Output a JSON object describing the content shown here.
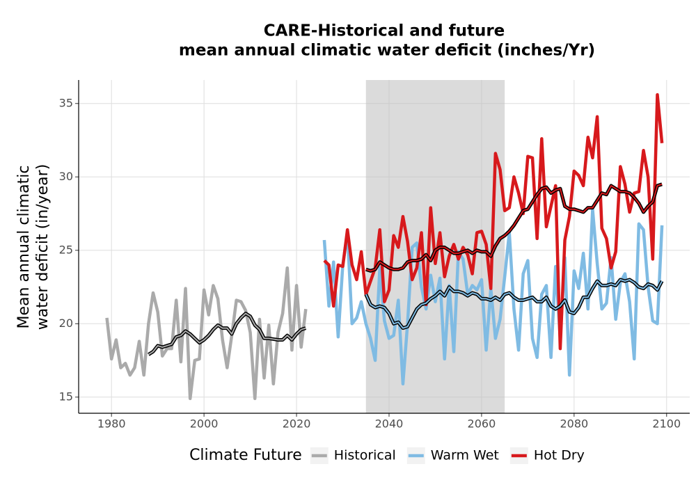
{
  "chart_data": {
    "type": "line",
    "title": [
      "CARE-Historical and future",
      "mean annual climatic water deficit (inches/Yr)"
    ],
    "ylabel": [
      "Mean annual climatic",
      "water deficit (in/year)"
    ],
    "legend_title": "Climate Future",
    "legend_position": "bottom",
    "grid": true,
    "xlim": [
      1972.9,
      2105
    ],
    "ylim": [
      13.9,
      36.6
    ],
    "xticks": [
      1980,
      2000,
      2020,
      2040,
      2060,
      2080,
      2100
    ],
    "yticks": [
      15,
      20,
      25,
      30,
      35
    ],
    "shaded_region": [
      2035,
      2065
    ],
    "series": [
      {
        "name": "Historical",
        "color": "#aaaaaa",
        "x": [
          1979,
          1980,
          1981,
          1982,
          1983,
          1984,
          1985,
          1986,
          1987,
          1988,
          1989,
          1990,
          1991,
          1992,
          1993,
          1994,
          1995,
          1996,
          1997,
          1998,
          1999,
          2000,
          2001,
          2002,
          2003,
          2004,
          2005,
          2006,
          2007,
          2008,
          2009,
          2010,
          2011,
          2012,
          2013,
          2014,
          2015,
          2016,
          2017,
          2018,
          2019,
          2020,
          2021,
          2022
        ],
        "values": [
          20.4,
          17.6,
          18.9,
          17.0,
          17.3,
          16.5,
          17.0,
          18.8,
          16.5,
          20.0,
          22.1,
          20.8,
          17.8,
          18.3,
          18.3,
          21.6,
          17.4,
          22.4,
          14.9,
          17.5,
          17.6,
          22.3,
          20.6,
          22.6,
          21.7,
          18.9,
          17.0,
          19.2,
          21.6,
          21.5,
          20.9,
          19.4,
          14.9,
          20.3,
          16.3,
          19.9,
          15.9,
          19.4,
          20.7,
          23.8,
          18.2,
          22.6,
          18.4,
          21.0
        ],
        "smooth": {
          "x": [
            1988,
            1989,
            1990,
            1991,
            1992,
            1993,
            1994,
            1995,
            1996,
            1997,
            1998,
            1999,
            2000,
            2001,
            2002,
            2003,
            2004,
            2005,
            2006,
            2007,
            2008,
            2009,
            2010,
            2011,
            2012,
            2013,
            2014,
            2015,
            2016,
            2017,
            2018,
            2019,
            2020,
            2021,
            2022
          ],
          "values": [
            17.9,
            18.1,
            18.5,
            18.4,
            18.5,
            18.6,
            19.1,
            19.2,
            19.5,
            19.3,
            19.0,
            18.7,
            18.9,
            19.2,
            19.6,
            19.9,
            19.7,
            19.7,
            19.3,
            20.0,
            20.4,
            20.7,
            20.5,
            19.9,
            19.6,
            19.0,
            19.0,
            18.95,
            18.9,
            18.9,
            19.2,
            18.9,
            19.3,
            19.6,
            19.7
          ]
        }
      },
      {
        "name": "Warm Wet",
        "color": "#7fbbe3",
        "x": [
          2026,
          2027,
          2028,
          2029,
          2030,
          2031,
          2032,
          2033,
          2034,
          2035,
          2036,
          2037,
          2038,
          2039,
          2040,
          2041,
          2042,
          2043,
          2044,
          2045,
          2046,
          2047,
          2048,
          2049,
          2050,
          2051,
          2052,
          2053,
          2054,
          2055,
          2056,
          2057,
          2058,
          2059,
          2060,
          2061,
          2062,
          2063,
          2064,
          2065,
          2066,
          2067,
          2068,
          2069,
          2070,
          2071,
          2072,
          2073,
          2074,
          2075,
          2076,
          2077,
          2078,
          2079,
          2080,
          2081,
          2082,
          2083,
          2084,
          2085,
          2086,
          2087,
          2088,
          2089,
          2090,
          2091,
          2092,
          2093,
          2094,
          2095,
          2096,
          2097,
          2098,
          2099
        ],
        "values": [
          25.7,
          21.2,
          24.2,
          19.1,
          24.0,
          26.2,
          20.0,
          20.4,
          21.5,
          20.0,
          19.0,
          17.5,
          23.8,
          20.2,
          19.0,
          19.2,
          21.6,
          15.9,
          20.0,
          25.2,
          25.5,
          22.5,
          21.0,
          23.3,
          21.5,
          23.1,
          17.6,
          22.6,
          18.1,
          24.9,
          24.4,
          22.0,
          22.6,
          22.3,
          23.0,
          18.2,
          22.4,
          19.0,
          20.3,
          23.2,
          26.2,
          21.0,
          18.2,
          23.4,
          24.3,
          19.0,
          17.7,
          22.0,
          22.6,
          17.7,
          23.9,
          19.0,
          24.5,
          16.5,
          23.6,
          22.4,
          24.8,
          21.0,
          27.8,
          24.1,
          21.0,
          21.4,
          24.5,
          20.3,
          22.8,
          23.4,
          21.5,
          17.6,
          26.8,
          26.4,
          22.5,
          20.2,
          20.0,
          26.7
        ],
        "smooth": {
          "x": [
            2035,
            2036,
            2037,
            2038,
            2039,
            2040,
            2041,
            2042,
            2043,
            2044,
            2045,
            2046,
            2047,
            2048,
            2049,
            2050,
            2051,
            2052,
            2053,
            2054,
            2055,
            2056,
            2057,
            2058,
            2059,
            2060,
            2061,
            2062,
            2063,
            2064,
            2065,
            2066,
            2067,
            2068,
            2069,
            2070,
            2071,
            2072,
            2073,
            2074,
            2075,
            2076,
            2077,
            2078,
            2079,
            2080,
            2081,
            2082,
            2083,
            2084,
            2085,
            2086,
            2087,
            2088,
            2089,
            2090,
            2091,
            2092,
            2093,
            2094,
            2095,
            2096,
            2097,
            2098,
            2099
          ],
          "values": [
            22.0,
            21.3,
            21.1,
            21.2,
            21.1,
            20.7,
            20.0,
            20.1,
            19.7,
            19.8,
            20.4,
            21.0,
            21.3,
            21.4,
            21.7,
            21.9,
            22.2,
            21.9,
            22.5,
            22.2,
            22.2,
            22.1,
            21.9,
            22.1,
            22.0,
            21.7,
            21.7,
            21.6,
            21.8,
            21.6,
            22.0,
            22.1,
            21.8,
            21.6,
            21.6,
            21.7,
            21.8,
            21.5,
            21.5,
            21.8,
            21.2,
            21.0,
            21.2,
            21.6,
            20.8,
            20.7,
            21.1,
            21.8,
            21.8,
            22.4,
            22.9,
            22.6,
            22.6,
            22.7,
            22.6,
            23.0,
            22.9,
            23.0,
            22.8,
            22.5,
            22.4,
            22.7,
            22.6,
            22.3,
            22.9
          ]
        }
      },
      {
        "name": "Hot Dry",
        "color": "#d7191c",
        "x": [
          2026,
          2027,
          2028,
          2029,
          2030,
          2031,
          2032,
          2033,
          2034,
          2035,
          2036,
          2037,
          2038,
          2039,
          2040,
          2041,
          2042,
          2043,
          2044,
          2045,
          2046,
          2047,
          2048,
          2049,
          2050,
          2051,
          2052,
          2053,
          2054,
          2055,
          2056,
          2057,
          2058,
          2059,
          2060,
          2061,
          2062,
          2063,
          2064,
          2065,
          2066,
          2067,
          2068,
          2069,
          2070,
          2071,
          2072,
          2073,
          2074,
          2075,
          2076,
          2077,
          2078,
          2079,
          2080,
          2081,
          2082,
          2083,
          2084,
          2085,
          2086,
          2087,
          2088,
          2089,
          2090,
          2091,
          2092,
          2093,
          2094,
          2095,
          2096,
          2097,
          2098,
          2099
        ],
        "values": [
          24.3,
          24.0,
          21.2,
          24.0,
          23.9,
          26.4,
          24.0,
          23.0,
          24.9,
          22.0,
          22.9,
          23.8,
          26.4,
          21.5,
          22.3,
          26.0,
          25.2,
          27.3,
          25.6,
          23.0,
          23.8,
          26.2,
          21.3,
          27.9,
          24.1,
          26.2,
          23.2,
          24.6,
          25.4,
          24.4,
          25.2,
          24.7,
          23.4,
          26.2,
          26.3,
          25.4,
          22.4,
          31.6,
          30.5,
          27.7,
          27.9,
          30.0,
          28.9,
          27.5,
          31.4,
          31.3,
          25.8,
          32.6,
          26.6,
          28.0,
          29.4,
          18.3,
          25.7,
          27.3,
          30.4,
          30.1,
          29.4,
          32.7,
          31.3,
          34.1,
          26.5,
          25.8,
          23.8,
          24.9,
          30.7,
          29.5,
          27.6,
          28.9,
          29.0,
          31.8,
          30.0,
          24.4,
          35.6,
          32.3
        ],
        "smooth": {
          "x": [
            2035,
            2036,
            2037,
            2038,
            2039,
            2040,
            2041,
            2042,
            2043,
            2044,
            2045,
            2046,
            2047,
            2048,
            2049,
            2050,
            2051,
            2052,
            2053,
            2054,
            2055,
            2056,
            2057,
            2058,
            2059,
            2060,
            2061,
            2062,
            2063,
            2064,
            2065,
            2066,
            2067,
            2068,
            2069,
            2070,
            2071,
            2072,
            2073,
            2074,
            2075,
            2076,
            2077,
            2078,
            2079,
            2080,
            2081,
            2082,
            2083,
            2084,
            2085,
            2086,
            2087,
            2088,
            2089,
            2090,
            2091,
            2092,
            2093,
            2094,
            2095,
            2096,
            2097,
            2098,
            2099
          ],
          "values": [
            23.7,
            23.6,
            23.7,
            24.2,
            24.0,
            23.8,
            23.7,
            23.7,
            23.8,
            24.2,
            24.3,
            24.3,
            24.4,
            24.7,
            24.3,
            25.0,
            25.2,
            25.2,
            25.0,
            24.8,
            24.8,
            24.9,
            25.0,
            24.8,
            25.0,
            24.9,
            24.9,
            24.6,
            25.3,
            25.8,
            26.0,
            26.3,
            26.7,
            27.2,
            27.7,
            27.8,
            28.3,
            28.8,
            29.2,
            29.3,
            28.9,
            29.1,
            29.2,
            28.0,
            27.8,
            27.8,
            27.7,
            27.6,
            27.9,
            27.9,
            28.4,
            28.9,
            28.8,
            29.4,
            29.2,
            29.0,
            29.0,
            28.9,
            28.6,
            28.2,
            27.6,
            28.0,
            28.3,
            29.4,
            29.5
          ]
        }
      }
    ]
  }
}
